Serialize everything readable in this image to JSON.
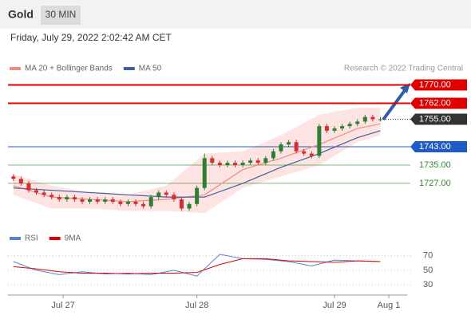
{
  "header": {
    "title": "Gold",
    "timeframe": "30 MIN"
  },
  "chart_data": [
    {
      "type": "candlestick",
      "subtitle": "Friday, July 29, 2022 2:02:42 AM CET",
      "annotation": "Research © 2022 Trading Central",
      "up_color": "#2e7d32",
      "down_color": "#d32f2f",
      "xlim": [
        -0.5,
        51.5
      ],
      "ylim": [
        1712,
        1774
      ],
      "open": [
        1730,
        1729,
        1727,
        1724,
        1723,
        1722,
        1721,
        1720,
        1721,
        1720,
        1719,
        1720,
        1719,
        1720,
        1719,
        1718,
        1719,
        1718,
        1717,
        1721,
        1723,
        1722,
        1720,
        1716,
        1718,
        1725,
        1738,
        1736,
        1735,
        1736,
        1735,
        1736,
        1737,
        1736,
        1738,
        1741,
        1744,
        1745,
        1741,
        1740,
        1739,
        1752,
        1750,
        1751,
        1752,
        1753,
        1754,
        1756,
        1755
      ],
      "high": [
        1731,
        1730,
        1728,
        1725,
        1724,
        1723,
        1722,
        1722,
        1722,
        1721,
        1721,
        1721,
        1721,
        1721,
        1720,
        1720,
        1720,
        1719,
        1722,
        1724,
        1724,
        1723,
        1721,
        1719,
        1726,
        1740,
        1739,
        1737,
        1737,
        1737,
        1737,
        1738,
        1738,
        1739,
        1742,
        1745,
        1746,
        1746,
        1742,
        1741,
        1753,
        1753,
        1752,
        1753,
        1754,
        1755,
        1757,
        1757,
        1756
      ],
      "low": [
        1728,
        1726,
        1723,
        1722,
        1721,
        1720,
        1719,
        1719,
        1719,
        1718,
        1718,
        1718,
        1718,
        1718,
        1717,
        1717,
        1717,
        1716,
        1716,
        1720,
        1721,
        1719,
        1715,
        1715,
        1717,
        1724,
        1735,
        1734,
        1734,
        1734,
        1734,
        1735,
        1735,
        1735,
        1737,
        1740,
        1743,
        1740,
        1739,
        1738,
        1738,
        1749,
        1749,
        1750,
        1751,
        1752,
        1753,
        1754,
        1754
      ],
      "close": [
        1729,
        1727,
        1724,
        1723,
        1722,
        1721,
        1720,
        1721,
        1720,
        1719,
        1720,
        1719,
        1720,
        1719,
        1718,
        1719,
        1718,
        1717,
        1721,
        1723,
        1722,
        1720,
        1716,
        1718,
        1725,
        1738,
        1736,
        1735,
        1736,
        1735,
        1736,
        1737,
        1736,
        1738,
        1741,
        1744,
        1745,
        1741,
        1740,
        1739,
        1752,
        1750,
        1751,
        1752,
        1753,
        1754,
        1756,
        1755,
        1755
      ],
      "overlays": {
        "x": [
          0,
          5,
          10,
          15,
          20,
          25,
          30,
          35,
          40,
          45,
          48
        ],
        "band": {
          "color": "#fde3e1",
          "upper": [
            1731,
            1726,
            1723,
            1722,
            1726,
            1740,
            1741,
            1748,
            1757,
            1760,
            1760
          ],
          "lower": [
            1722,
            1716,
            1716,
            1715,
            1715,
            1714,
            1725,
            1730,
            1735,
            1745,
            1748
          ]
        },
        "series": [
          {
            "name": "MA 20 + Bollinger Bands",
            "color": "#f28b82",
            "values": [
              1726,
              1721,
              1720,
              1719,
              1720,
              1722,
              1733,
              1738,
              1744,
              1751,
              1753
            ]
          },
          {
            "name": "MA 50",
            "color": "#3f5f9f",
            "values": [
              1725,
              1724,
              1723,
              1722,
              1721,
              1721,
              1727,
              1734,
              1740,
              1747,
              1750
            ]
          }
        ]
      },
      "levels": [
        {
          "value": 1770,
          "label": "1770.00",
          "color": "#e00000",
          "style": "box"
        },
        {
          "value": 1762,
          "label": "1762.00",
          "color": "#e00000",
          "style": "box"
        },
        {
          "value": 1755,
          "label": "1755.00",
          "color": "#333333",
          "style": "dotted"
        },
        {
          "value": 1743,
          "label": "1743.00",
          "color": "#1e5bc6",
          "style": "box"
        },
        {
          "value": 1735,
          "label": "1735.00",
          "color": "#2e8b2e",
          "style": "text"
        },
        {
          "value": 1727,
          "label": "1727.00",
          "color": "#2e8b2e",
          "style": "text"
        }
      ]
    },
    {
      "type": "line",
      "xlim": [
        -0.5,
        51.5
      ],
      "ylim": [
        18,
        84
      ],
      "yticks": [
        70,
        50,
        30
      ],
      "x": [
        0,
        3,
        6,
        9,
        12,
        15,
        18,
        21,
        24,
        27,
        30,
        33,
        36,
        39,
        42,
        45,
        48
      ],
      "series": [
        {
          "name": "RSI",
          "color": "#5b7fd6",
          "values": [
            62,
            50,
            44,
            48,
            45,
            46,
            44,
            50,
            42,
            72,
            66,
            65,
            62,
            56,
            64,
            63,
            62
          ]
        },
        {
          "name": "9MA",
          "color": "#e00000",
          "values": [
            55,
            52,
            48,
            46,
            46,
            45,
            46,
            46,
            47,
            58,
            66,
            66,
            63,
            62,
            61,
            63,
            62
          ]
        }
      ],
      "xticks": [
        {
          "value": 6.5,
          "label": "Jul 27"
        },
        {
          "value": 24,
          "label": "Jul 28"
        },
        {
          "value": 42,
          "label": "Jul 29"
        },
        {
          "value": 49.1,
          "label": "Aug 1"
        }
      ]
    }
  ]
}
